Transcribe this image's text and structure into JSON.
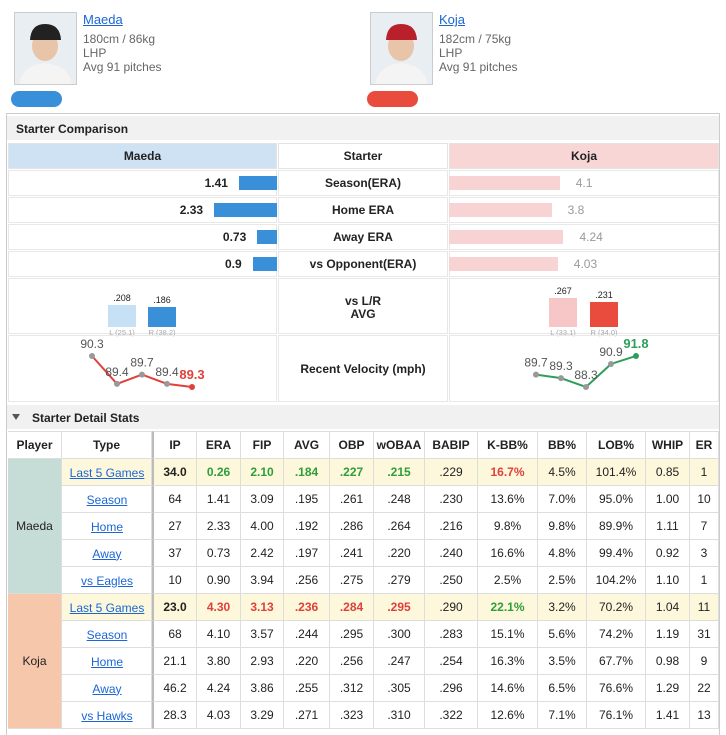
{
  "players": [
    {
      "name": "Maeda",
      "body": "180cm / 86kg",
      "throws": "LHP",
      "pitches": "Avg 91 pitches",
      "color": "#3a8fd9",
      "cap": "#222222"
    },
    {
      "name": "Koja",
      "body": "182cm / 75kg",
      "throws": "LHP",
      "pitches": "Avg 91 pitches",
      "color": "#e94b3c",
      "cap": "#b8202c"
    }
  ],
  "comparison": {
    "title": "Starter Comparison",
    "header": [
      "Maeda",
      "Starter",
      "Koja"
    ],
    "bar_colors": [
      "#3a8fd9",
      "#f8d3d3"
    ],
    "rows": [
      {
        "label": "Season(ERA)",
        "values": [
          1.41,
          4.1
        ]
      },
      {
        "label": "Home ERA",
        "values": [
          2.33,
          3.8
        ]
      },
      {
        "label": "Away ERA",
        "values": [
          0.73,
          4.24
        ]
      },
      {
        "label": "vs Opponent(ERA)",
        "values": [
          0.9,
          4.03
        ]
      }
    ],
    "split": {
      "label": [
        "vs L/R",
        "AVG"
      ],
      "sides": [
        {
          "colors": [
            "#c6e0f5",
            "#3a8fd9"
          ],
          "bars": [
            {
              "value": 0.208,
              "label": ".208",
              "sample": "L (25.1)"
            },
            {
              "value": 0.186,
              "label": ".186",
              "sample": "R (38.2)"
            }
          ]
        },
        {
          "colors": [
            "#f7c6c6",
            "#e94b3c"
          ],
          "bars": [
            {
              "value": 0.267,
              "label": ".267",
              "sample": "L (33.1)"
            },
            {
              "value": 0.231,
              "label": ".231",
              "sample": "R (34.0)"
            }
          ]
        }
      ]
    },
    "velocity": {
      "label": "Recent Velocity (mph)",
      "series": [
        {
          "values": [
            90.3,
            89.4,
            89.7,
            89.4,
            89.3
          ],
          "color": "#e0403a"
        },
        {
          "values": [
            89.7,
            89.3,
            88.3,
            90.9,
            91.8
          ],
          "color": "#2e9e5b"
        }
      ]
    }
  },
  "detail": {
    "title": "Starter Detail Stats",
    "columns": [
      "Player",
      "Type",
      "IP",
      "ERA",
      "FIP",
      "AVG",
      "OBP",
      "wOBAA",
      "BABIP",
      "K-BB%",
      "BB%",
      "LOB%",
      "WHIP",
      "ER"
    ],
    "groups": [
      {
        "player": "Maeda",
        "color": "#c6dcd6",
        "lead_row_colors": [
          null,
          "#2e9e3b",
          "#2e9e3b",
          "#2e9e3b",
          "#2e9e3b",
          "#2e9e3b",
          null,
          "#e0403a",
          null,
          null,
          null,
          null
        ],
        "rows": [
          {
            "type": "Last 5 Games",
            "stats": [
              "34.0",
              "0.26",
              "2.10",
              ".184",
              ".227",
              ".215",
              ".229",
              "16.7%",
              "4.5%",
              "101.4%",
              "0.85",
              "1"
            ]
          },
          {
            "type": "Season",
            "stats": [
              "64",
              "1.41",
              "3.09",
              ".195",
              ".261",
              ".248",
              ".230",
              "13.6%",
              "7.0%",
              "95.0%",
              "1.00",
              "10"
            ]
          },
          {
            "type": "Home",
            "stats": [
              "27",
              "2.33",
              "4.00",
              ".192",
              ".286",
              ".264",
              ".216",
              "9.8%",
              "9.8%",
              "89.9%",
              "1.11",
              "7"
            ]
          },
          {
            "type": "Away",
            "stats": [
              "37",
              "0.73",
              "2.42",
              ".197",
              ".241",
              ".220",
              ".240",
              "16.6%",
              "4.8%",
              "99.4%",
              "0.92",
              "3"
            ]
          },
          {
            "type": "vs Eagles",
            "stats": [
              "10",
              "0.90",
              "3.94",
              ".256",
              ".275",
              ".279",
              ".250",
              "2.5%",
              "2.5%",
              "104.2%",
              "1.10",
              "1"
            ]
          }
        ]
      },
      {
        "player": "Koja",
        "color": "#f7c7ac",
        "lead_row_colors": [
          null,
          "#e0403a",
          "#e0403a",
          "#e0403a",
          "#e0403a",
          "#e0403a",
          null,
          "#2e9e3b",
          null,
          null,
          null,
          null
        ],
        "rows": [
          {
            "type": "Last 5 Games",
            "stats": [
              "23.0",
              "4.30",
              "3.13",
              ".236",
              ".284",
              ".295",
              ".290",
              "22.1%",
              "3.2%",
              "70.2%",
              "1.04",
              "11"
            ]
          },
          {
            "type": "Season",
            "stats": [
              "68",
              "4.10",
              "3.57",
              ".244",
              ".295",
              ".300",
              ".283",
              "15.1%",
              "5.6%",
              "74.2%",
              "1.19",
              "31"
            ]
          },
          {
            "type": "Home",
            "stats": [
              "21.1",
              "3.80",
              "2.93",
              ".220",
              ".256",
              ".247",
              ".254",
              "16.3%",
              "3.5%",
              "67.7%",
              "0.98",
              "9"
            ]
          },
          {
            "type": "Away",
            "stats": [
              "46.2",
              "4.24",
              "3.86",
              ".255",
              ".312",
              ".305",
              ".296",
              "14.6%",
              "6.5%",
              "76.6%",
              "1.29",
              "22"
            ]
          },
          {
            "type": "vs Hawks",
            "stats": [
              "28.3",
              "4.03",
              "3.29",
              ".271",
              ".323",
              ".310",
              ".322",
              "12.6%",
              "7.1%",
              "76.1%",
              "1.41",
              "13"
            ]
          }
        ]
      }
    ]
  }
}
